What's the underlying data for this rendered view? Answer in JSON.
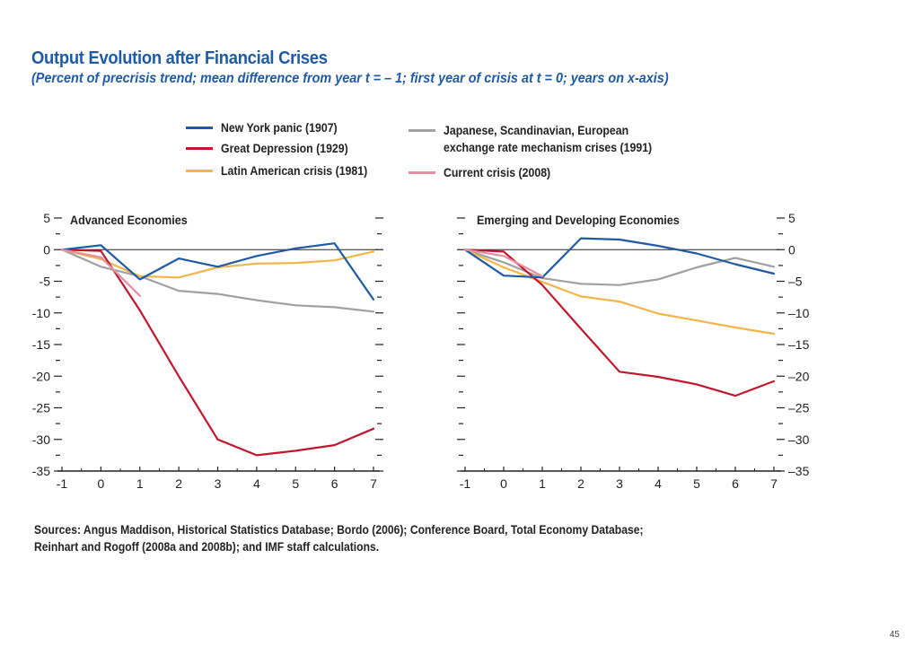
{
  "title": "Output Evolution after Financial Crises",
  "subtitle": "(Percent of precrisis trend; mean difference from year  t = – 1; first year of crisis at t = 0; years on x-axis)",
  "legend": [
    {
      "label": "New York panic (1907)",
      "color": "#1f5aa6"
    },
    {
      "label": "Great Depression (1929)",
      "color": "#c0172d"
    },
    {
      "label": "Latin American crisis (1981)",
      "color": "#f2b54a"
    },
    {
      "label": "Japanese, Scandinavian, European\nexchange rate mechanism crises (1991)",
      "color": "#a0a0a0"
    },
    {
      "label": "Current crisis (2008)",
      "color": "#e58f9e"
    }
  ],
  "chart_data": [
    {
      "type": "line",
      "title": "Advanced Economies",
      "x": [
        -1,
        0,
        1,
        2,
        3,
        4,
        5,
        6,
        7
      ],
      "ylim": [
        -35,
        5
      ],
      "yticks": [
        5,
        0,
        -5,
        -10,
        -15,
        -20,
        -25,
        -30,
        -35
      ],
      "ytick_labels": [
        "5",
        "0",
        "-5",
        "-10",
        "-15",
        "-20",
        "-25",
        "-30",
        "-35"
      ],
      "xtick_labels": [
        "-1",
        "0",
        "1",
        "2",
        "3",
        "4",
        "5",
        "6",
        "7"
      ],
      "series": [
        {
          "name": "Japanese, Scandinavian, European exchange rate mechanism crises (1991)",
          "color": "#a0a0a0",
          "x": [
            -1,
            0,
            1,
            2,
            3,
            4,
            5,
            6,
            7
          ],
          "values": [
            0,
            -2.7,
            -4.2,
            -6.5,
            -7.0,
            -8.0,
            -8.8,
            -9.1,
            -9.8
          ]
        },
        {
          "name": "Latin American crisis (1981)",
          "color": "#f2b54a",
          "x": [
            -1,
            0,
            1,
            2,
            3,
            4,
            5,
            6,
            7
          ],
          "values": [
            0,
            -1.5,
            -4.2,
            -4.4,
            -2.8,
            -2.2,
            -2.1,
            -1.7,
            -0.3
          ]
        },
        {
          "name": "Great Depression (1929)",
          "color": "#c0172d",
          "x": [
            -1,
            0,
            1,
            2,
            3,
            4,
            5,
            6,
            7
          ],
          "values": [
            0,
            -0.2,
            -9.6,
            -20.0,
            -30.0,
            -32.5,
            -31.8,
            -30.9,
            -28.3
          ]
        },
        {
          "name": "New York panic (1907)",
          "color": "#1f5aa6",
          "x": [
            -1,
            0,
            1,
            2,
            3,
            4,
            5,
            6,
            7
          ],
          "values": [
            0,
            0.7,
            -4.7,
            -1.4,
            -2.7,
            -1.0,
            0.2,
            1.0,
            -7.9
          ]
        },
        {
          "name": "Current crisis (2008)",
          "color": "#e58f9e",
          "x": [
            -1,
            0,
            1
          ],
          "values": [
            0,
            -1.2,
            -7.3
          ]
        }
      ]
    },
    {
      "type": "line",
      "title": "Emerging and Developing Economies",
      "x": [
        -1,
        0,
        1,
        2,
        3,
        4,
        5,
        6,
        7
      ],
      "ylim": [
        -35,
        5
      ],
      "yticks": [
        5,
        0,
        -5,
        -10,
        -15,
        -20,
        -25,
        -30,
        -35
      ],
      "ytick_labels": [
        "5",
        "0",
        "–5",
        "–10",
        "–15",
        "–20",
        "–25",
        "–30",
        "–35"
      ],
      "xtick_labels": [
        "-1",
        "0",
        "1",
        "2",
        "3",
        "4",
        "5",
        "6",
        "7"
      ],
      "series": [
        {
          "name": "Japanese, Scandinavian, European exchange rate mechanism crises (1991)",
          "color": "#a0a0a0",
          "x": [
            -1,
            0,
            1,
            2,
            3,
            4,
            5,
            6,
            7
          ],
          "values": [
            0,
            -2.0,
            -4.5,
            -5.4,
            -5.6,
            -4.7,
            -2.8,
            -1.3,
            -2.7
          ]
        },
        {
          "name": "Latin American crisis (1981)",
          "color": "#f2b54a",
          "x": [
            -1,
            0,
            1,
            2,
            3,
            4,
            5,
            6,
            7
          ],
          "values": [
            0,
            -2.8,
            -5.1,
            -7.4,
            -8.2,
            -10.1,
            -11.2,
            -12.3,
            -13.3
          ]
        },
        {
          "name": "Great Depression (1929)",
          "color": "#c0172d",
          "x": [
            -1,
            0,
            1,
            2,
            3,
            4,
            5,
            6,
            7
          ],
          "values": [
            0,
            -0.3,
            -5.6,
            -12.5,
            -19.3,
            -20.1,
            -21.3,
            -23.1,
            -20.8
          ]
        },
        {
          "name": "New York panic (1907)",
          "color": "#1f5aa6",
          "x": [
            -1,
            0,
            1,
            2,
            3,
            4,
            5,
            6,
            7
          ],
          "values": [
            0,
            -4.1,
            -4.4,
            1.8,
            1.6,
            0.6,
            -0.6,
            -2.3,
            -3.8
          ]
        },
        {
          "name": "Current crisis (2008)",
          "color": "#e58f9e",
          "x": [
            -1,
            0,
            1
          ],
          "values": [
            0,
            -1.0,
            -4.2
          ]
        }
      ]
    }
  ],
  "sources": "Sources: Angus Maddison, Historical Statistics Database; Bordo (2006); Conference Board, Total Economy Database; Reinhart and Rogoff (2008a and 2008b); and IMF staff calculations.",
  "page_number": "45"
}
